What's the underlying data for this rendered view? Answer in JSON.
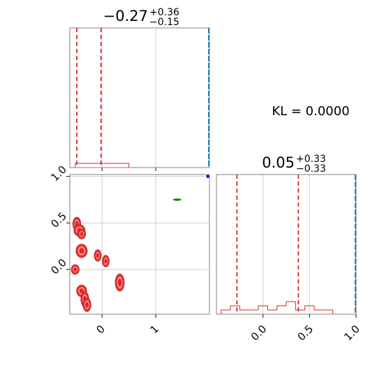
{
  "chart_data": {
    "type": "corner",
    "kl_text": "KL = 0.0000",
    "colors": {
      "samples": "#d62728",
      "truth": "#1f77b4",
      "alt": "#008000",
      "marker": "#0000ff",
      "grid": "#cccccc",
      "frame": "#808080"
    },
    "panels": [
      {
        "id": "hist-top",
        "kind": "histogram",
        "title_main": "−0.27",
        "title_sup": "+0.36",
        "title_sub": "−0.15",
        "xlim": [
          -0.6,
          2.0
        ],
        "x_gridlines": [
          0,
          1
        ],
        "x_ticks": [
          0,
          1
        ],
        "quantile_lines": [
          -0.47,
          -0.02
        ],
        "truth_line": 2.0,
        "hist": {
          "x": [
            -0.45,
            -0.35,
            -0.25,
            -0.15,
            -0.05,
            0.05,
            0.15,
            0.25,
            0.35,
            0.45
          ],
          "y": [
            0.01,
            0.01,
            0.01,
            0.01,
            0.01,
            0.01,
            0.01,
            0.01,
            0.01,
            0.01
          ]
        }
      },
      {
        "id": "scatter-2d",
        "kind": "2d-density",
        "xlim": [
          -0.6,
          2.0
        ],
        "ylim": [
          -0.48,
          1.02
        ],
        "x_ticks": [
          0,
          1
        ],
        "x_tick_labels": [
          "0",
          "1"
        ],
        "y_ticks": [
          0.0,
          0.5,
          1.0
        ],
        "y_tick_labels": [
          "0.0",
          "0.5",
          "1.0"
        ],
        "blobs": [
          {
            "x": -0.47,
            "y": 0.49,
            "rx": 0.07,
            "ry": 0.07
          },
          {
            "x": -0.42,
            "y": 0.42,
            "rx": 0.1,
            "ry": 0.06
          },
          {
            "x": -0.38,
            "y": 0.38,
            "rx": 0.07,
            "ry": 0.05
          },
          {
            "x": -0.38,
            "y": 0.2,
            "rx": 0.1,
            "ry": 0.07
          },
          {
            "x": -0.5,
            "y": 0.0,
            "rx": 0.07,
            "ry": 0.05
          },
          {
            "x": -0.08,
            "y": 0.15,
            "rx": 0.06,
            "ry": 0.06
          },
          {
            "x": 0.07,
            "y": 0.09,
            "rx": 0.06,
            "ry": 0.06
          },
          {
            "x": 0.33,
            "y": -0.14,
            "rx": 0.08,
            "ry": 0.09
          },
          {
            "x": -0.38,
            "y": -0.23,
            "rx": 0.09,
            "ry": 0.06
          },
          {
            "x": -0.32,
            "y": -0.32,
            "rx": 0.07,
            "ry": 0.08
          },
          {
            "x": -0.28,
            "y": -0.38,
            "rx": 0.07,
            "ry": 0.07
          }
        ],
        "alt_point": {
          "x": 1.4,
          "y": 0.75
        },
        "marker_point": {
          "x": 1.97,
          "y": 1.0
        }
      },
      {
        "id": "hist-right",
        "kind": "histogram",
        "title_main": "0.05",
        "title_sup": "+0.33",
        "title_sub": "−0.33",
        "xlim": [
          -0.5,
          1.0
        ],
        "x_gridlines": [
          0.0,
          0.5
        ],
        "x_ticks": [
          0.0,
          0.5,
          1.0
        ],
        "x_tick_labels": [
          "0.0",
          "0.5",
          "1.0"
        ],
        "quantile_lines": [
          -0.28,
          0.38
        ],
        "truth_line": 1.0,
        "hist": {
          "x": [
            -0.4,
            -0.3,
            -0.2,
            -0.1,
            0.0,
            0.1,
            0.2,
            0.3,
            0.4,
            0.5,
            0.6,
            0.7
          ],
          "y": [
            0.01,
            0.02,
            0.01,
            0.01,
            0.02,
            0.01,
            0.02,
            0.03,
            0.01,
            0.02,
            0.01,
            0.01
          ]
        }
      }
    ]
  }
}
